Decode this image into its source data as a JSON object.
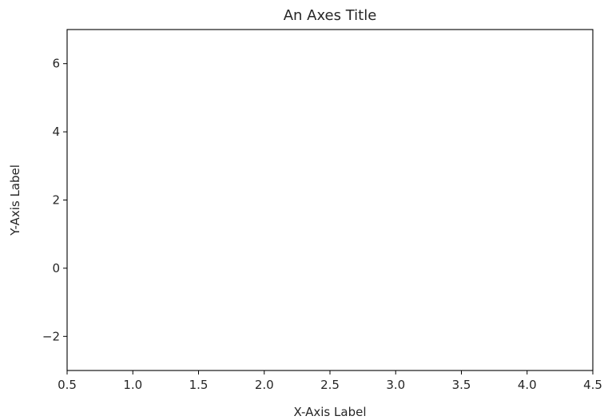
{
  "chart_data": {
    "type": "line",
    "title": "An Axes Title",
    "xlabel": "X-Axis Label",
    "ylabel": "Y-Axis Label",
    "xlim": [
      0.5,
      4.5
    ],
    "ylim": [
      -3,
      7
    ],
    "xticks": [
      0.5,
      1.0,
      1.5,
      2.0,
      2.5,
      3.0,
      3.5,
      4.0,
      4.5
    ],
    "xtick_labels": [
      "0.5",
      "1.0",
      "1.5",
      "2.0",
      "2.5",
      "3.0",
      "3.5",
      "4.0",
      "4.5"
    ],
    "yticks": [
      -2,
      0,
      2,
      4,
      6
    ],
    "ytick_labels": [
      "−2",
      "0",
      "2",
      "4",
      "6"
    ],
    "series": [],
    "grid": false,
    "legend": "none"
  }
}
